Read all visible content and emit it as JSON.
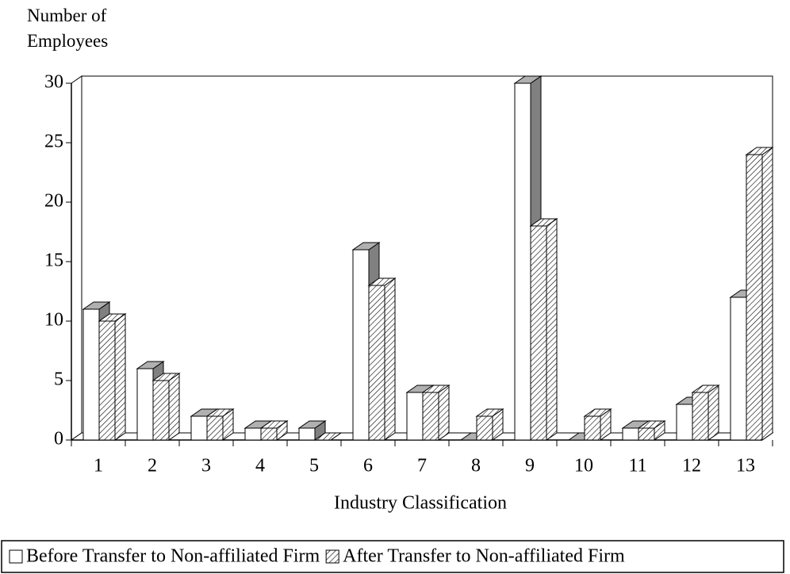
{
  "chart_data": {
    "type": "bar3d",
    "y_label": "Number of Employees",
    "x_label": "Industry Classification",
    "categories": [
      "1",
      "2",
      "3",
      "4",
      "5",
      "6",
      "7",
      "8",
      "9",
      "10",
      "11",
      "12",
      "13"
    ],
    "series": [
      {
        "name": "Before Transfer to Non-affiliated Firm",
        "color": "#ffffff",
        "values": [
          11,
          6,
          2,
          1,
          1,
          16,
          4,
          0,
          30,
          0,
          1,
          3,
          12
        ]
      },
      {
        "name": "After Transfer to Non-affiliated Firm",
        "color": "hatch",
        "values": [
          10,
          5,
          2,
          1,
          0,
          13,
          4,
          2,
          18,
          2,
          1,
          4,
          24
        ]
      }
    ],
    "ylim": [
      0,
      30
    ],
    "yticks": [
      0,
      5,
      10,
      15,
      20,
      25,
      30
    ]
  }
}
